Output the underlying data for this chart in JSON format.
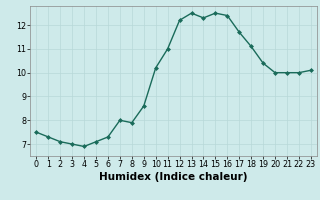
{
  "x": [
    0,
    1,
    2,
    3,
    4,
    5,
    6,
    7,
    8,
    9,
    10,
    11,
    12,
    13,
    14,
    15,
    16,
    17,
    18,
    19,
    20,
    21,
    22,
    23
  ],
  "y": [
    7.5,
    7.3,
    7.1,
    7.0,
    6.9,
    7.1,
    7.3,
    8.0,
    7.9,
    8.6,
    10.2,
    11.0,
    12.2,
    12.5,
    12.3,
    12.5,
    12.4,
    11.7,
    11.1,
    10.4,
    10.0,
    10.0,
    10.0,
    10.1
  ],
  "xlabel": "Humidex (Indice chaleur)",
  "xlim": [
    -0.5,
    23.5
  ],
  "ylim": [
    6.5,
    12.8
  ],
  "yticks": [
    7,
    8,
    9,
    10,
    11,
    12
  ],
  "xticks": [
    0,
    1,
    2,
    3,
    4,
    5,
    6,
    7,
    8,
    9,
    10,
    11,
    12,
    13,
    14,
    15,
    16,
    17,
    18,
    19,
    20,
    21,
    22,
    23
  ],
  "line_color": "#1a6b5a",
  "marker": "D",
  "marker_size": 2.0,
  "bg_color": "#ceeaea",
  "grid_color": "#b8d8d8",
  "tick_fontsize": 5.8,
  "xlabel_fontsize": 7.5,
  "line_width": 1.0
}
